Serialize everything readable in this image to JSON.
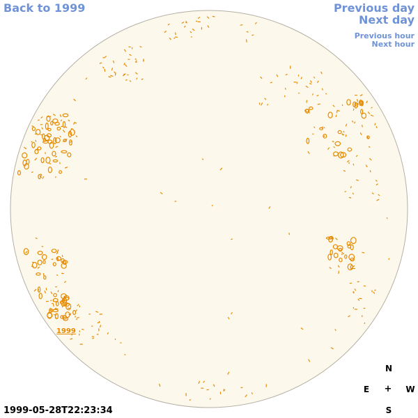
{
  "nav": {
    "back_label": "Back to 1999",
    "prev_day_label": "Previous day",
    "next_day_label": "Next day",
    "prev_hour_label": "Previous hour",
    "next_hour_label": "Next hour"
  },
  "compass": {
    "north": "N",
    "east": "E",
    "center": "+",
    "west": "W",
    "south": "S"
  },
  "timestamp": "1999-05-28T22:23:34",
  "year_tag": "1999",
  "colors": {
    "link": "#6f93d6",
    "disk_fill": "#fdf8ec",
    "disk_stroke": "#b5b0a4",
    "contour": "#e58a00"
  }
}
